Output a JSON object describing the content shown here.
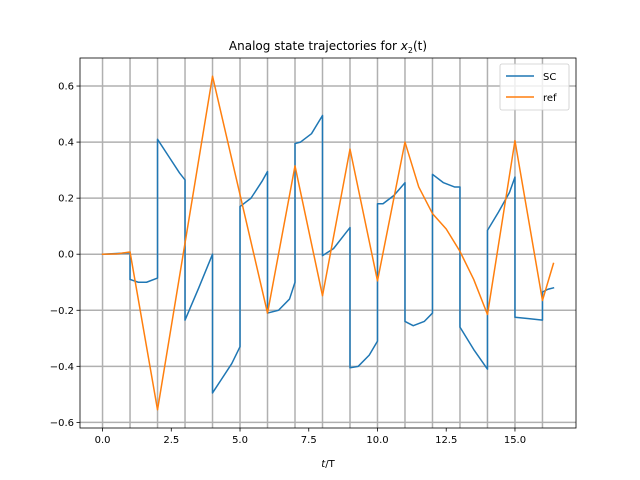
{
  "chart_data": {
    "type": "line",
    "title_main": "Analog state trajectories for ",
    "title_var": "x",
    "title_sub": "2",
    "title_tail": "(t)",
    "xlabel_t": "t",
    "xlabel_rest": "/T",
    "ylabel": "",
    "xlim": [
      -0.82,
      17.22
    ],
    "ylim": [
      -0.62,
      0.7
    ],
    "xticks": [
      0,
      2.5,
      5,
      7.5,
      10,
      12.5,
      15
    ],
    "xtick_labels": [
      "0.0",
      "2.5",
      "5.0",
      "7.5",
      "10.0",
      "12.5",
      "15.0"
    ],
    "yticks": [
      -0.6,
      -0.4,
      -0.2,
      0.0,
      0.2,
      0.4,
      0.6
    ],
    "ytick_labels": [
      "−0.6",
      "−0.4",
      "−0.2",
      "0.0",
      "0.2",
      "0.4",
      "0.6"
    ],
    "grid": true,
    "grid_x": [
      0,
      1,
      2,
      3,
      4,
      5,
      6,
      7,
      8,
      9,
      10,
      11,
      12,
      13,
      14,
      15,
      16
    ],
    "legend": "top-right",
    "series": [
      {
        "name": "SC",
        "color": "#1f77b4",
        "x": [
          0.0,
          1.0,
          1.0,
          1.3,
          1.6,
          2.0,
          2.0,
          2.4,
          2.8,
          3.0,
          3.0,
          3.5,
          4.0,
          4.0,
          4.3,
          4.7,
          5.0,
          5.0,
          5.4,
          5.8,
          6.0,
          6.0,
          6.4,
          6.8,
          7.0,
          7.0,
          7.2,
          7.6,
          8.0,
          8.0,
          8.4,
          8.8,
          9.0,
          9.0,
          9.3,
          9.7,
          10.0,
          10.0,
          10.2,
          10.6,
          11.0,
          11.0,
          11.3,
          11.7,
          12.0,
          12.0,
          12.4,
          12.8,
          13.0,
          13.0,
          13.5,
          14.0,
          14.0,
          14.4,
          14.8,
          15.0,
          15.0,
          15.5,
          16.0,
          16.0,
          16.2,
          16.4
        ],
        "y": [
          0.0,
          0.005,
          -0.09,
          -0.1,
          -0.1,
          -0.085,
          0.41,
          0.35,
          0.29,
          0.265,
          -0.235,
          -0.12,
          0.0,
          -0.495,
          -0.45,
          -0.39,
          -0.33,
          0.17,
          0.2,
          0.26,
          0.295,
          -0.21,
          -0.2,
          -0.16,
          -0.1,
          0.395,
          0.4,
          0.43,
          0.495,
          -0.005,
          0.02,
          0.07,
          0.095,
          -0.405,
          -0.4,
          -0.36,
          -0.31,
          0.18,
          0.18,
          0.21,
          0.255,
          -0.24,
          -0.255,
          -0.24,
          -0.21,
          0.285,
          0.255,
          0.24,
          0.24,
          -0.26,
          -0.34,
          -0.41,
          0.085,
          0.15,
          0.22,
          0.275,
          -0.225,
          -0.23,
          -0.235,
          -0.135,
          -0.125,
          -0.12
        ]
      },
      {
        "name": "ref",
        "color": "#ff7f0e",
        "x": [
          0.0,
          0.5,
          1.0,
          2.0,
          4.0,
          6.0,
          7.0,
          8.0,
          9.0,
          10.0,
          11.0,
          11.5,
          12.0,
          12.5,
          13.0,
          13.5,
          14.0,
          15.0,
          16.0,
          16.4
        ],
        "y": [
          0.0,
          0.001,
          0.008,
          -0.555,
          0.635,
          -0.21,
          0.315,
          -0.148,
          0.375,
          -0.095,
          0.4,
          0.24,
          0.145,
          0.09,
          0.01,
          -0.09,
          -0.215,
          0.405,
          -0.165,
          -0.033
        ]
      }
    ]
  }
}
